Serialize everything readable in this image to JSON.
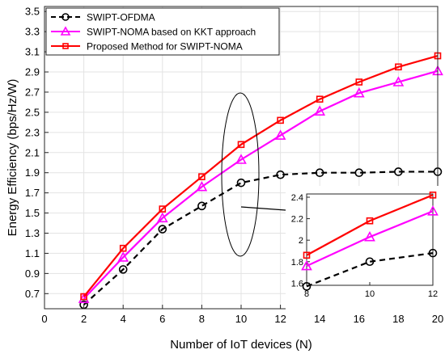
{
  "chart_data": {
    "type": "line",
    "xlabel": "Number of IoT devices (N)",
    "ylabel": "Energy Efficiency   (bps/Hz/W)",
    "xlim": [
      0,
      20
    ],
    "ylim": [
      0.55,
      3.55
    ],
    "xticks": [
      "0",
      "2",
      "4",
      "6",
      "8",
      "10",
      "12",
      "14",
      "16",
      "18",
      "20"
    ],
    "yticks": [
      "0.7",
      "0.9",
      "1.1",
      "1.3",
      "1.5",
      "1.7",
      "1.9",
      "2.1",
      "2.3",
      "2.5",
      "2.7",
      "2.9",
      "3.1",
      "3.3",
      "3.5"
    ],
    "grid": true,
    "legend_position": "top-left",
    "x": [
      2,
      4,
      6,
      8,
      10,
      12,
      14,
      16,
      18,
      20
    ],
    "series": [
      {
        "name": "SWIPT-OFDMA",
        "values": [
          0.59,
          0.94,
          1.34,
          1.57,
          1.8,
          1.88,
          1.9,
          1.9,
          1.91,
          1.91
        ],
        "color": "#000000",
        "marker": "circle",
        "dash": true
      },
      {
        "name": "SWIPT-NOMA based on KKT approach",
        "values": [
          0.65,
          1.06,
          1.45,
          1.76,
          2.03,
          2.27,
          2.51,
          2.69,
          2.8,
          2.91
        ],
        "color": "#ff00ff",
        "marker": "triangle",
        "dash": false
      },
      {
        "name": "Proposed Method for SWIPT-NOMA",
        "values": [
          0.67,
          1.15,
          1.54,
          1.86,
          2.18,
          2.42,
          2.63,
          2.8,
          2.95,
          3.06
        ],
        "color": "#ff0000",
        "marker": "square",
        "dash": false
      }
    ],
    "inset": {
      "xlim": [
        8,
        12
      ],
      "ylim": [
        1.58,
        2.43
      ],
      "xticks": [
        "8",
        "10",
        "12"
      ],
      "yticks": [
        "1.6",
        "1.8",
        "2",
        "2.2",
        "2.4"
      ]
    }
  }
}
